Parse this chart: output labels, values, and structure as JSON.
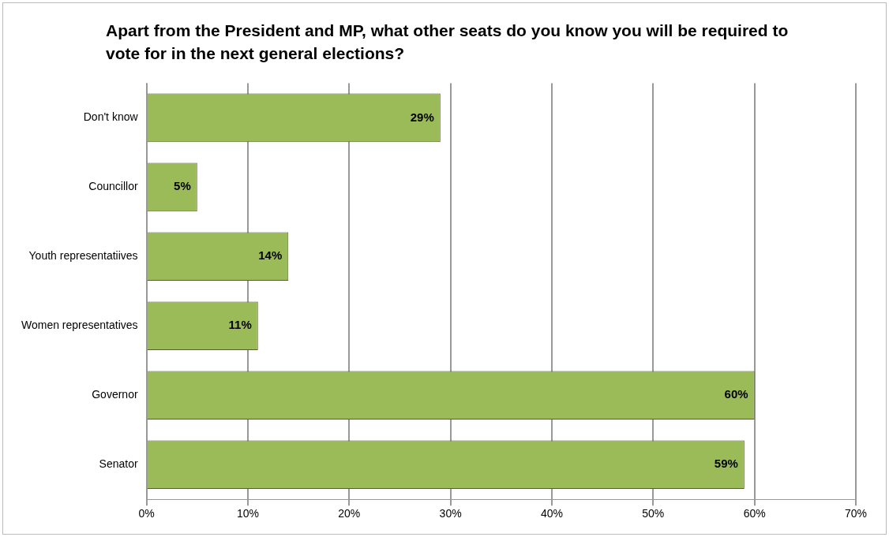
{
  "chart_data": {
    "type": "bar",
    "orientation": "horizontal",
    "title": "Apart from the President and MP, what other seats do you know you will be required to vote for in the next general elections?",
    "categories": [
      "Don't know",
      "Councillor",
      "Youth representatiives",
      "Women representatives",
      "Governor",
      "Senator"
    ],
    "values": [
      29,
      5,
      14,
      11,
      60,
      59
    ],
    "value_labels": [
      "29%",
      "5%",
      "14%",
      "11%",
      "60%",
      "59%"
    ],
    "color": "#9bbb59",
    "xlim": [
      0,
      70
    ],
    "xticks": [
      {
        "value": 0,
        "label": "0%"
      },
      {
        "value": 10,
        "label": "10%"
      },
      {
        "value": 20,
        "label": "20%"
      },
      {
        "value": 30,
        "label": "30%"
      },
      {
        "value": 40,
        "label": "40%"
      },
      {
        "value": 50,
        "label": "50%"
      },
      {
        "value": 60,
        "label": "60%"
      },
      {
        "value": 70,
        "label": "70%"
      }
    ],
    "grid": "x"
  }
}
